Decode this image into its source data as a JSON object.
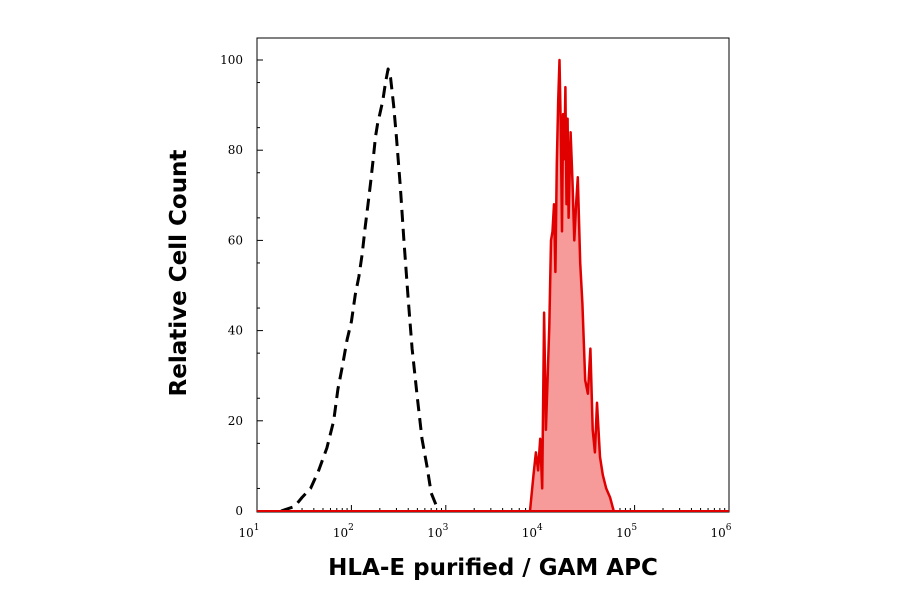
{
  "chart_data": {
    "type": "area",
    "title": "",
    "xlabel": "HLA-E purified / GAM APC",
    "ylabel": "Relative Cell Count",
    "x_scale": "log",
    "xlim": [
      10,
      1000000
    ],
    "ylim": [
      0,
      100
    ],
    "x_ticks": [
      {
        "base": "10",
        "exp": "1",
        "value": 10
      },
      {
        "base": "10",
        "exp": "2",
        "value": 100
      },
      {
        "base": "10",
        "exp": "3",
        "value": 1000
      },
      {
        "base": "10",
        "exp": "4",
        "value": 10000
      },
      {
        "base": "10",
        "exp": "5",
        "value": 100000
      },
      {
        "base": "10",
        "exp": "6",
        "value": 1000000
      }
    ],
    "y_ticks": [
      "0",
      "20",
      "40",
      "60",
      "80",
      "100"
    ],
    "grid": false,
    "legend": "none",
    "series": [
      {
        "style": "dashed",
        "color": "#000000",
        "fill": "none",
        "x": [
          18,
          25,
          30,
          37,
          45,
          55,
          65,
          72,
          80,
          90,
          100,
          110,
          120,
          130,
          140,
          150,
          160,
          170,
          180,
          190,
          200,
          215,
          230,
          245,
          260,
          280,
          300,
          330,
          360,
          400,
          440,
          500,
          560,
          630,
          700,
          800
        ],
        "y": [
          0,
          1,
          3,
          5,
          9,
          14,
          20,
          27,
          32,
          38,
          42,
          48,
          52,
          57,
          63,
          68,
          73,
          78,
          83,
          86,
          88,
          91,
          95,
          98,
          96,
          90,
          83,
          72,
          60,
          47,
          36,
          25,
          16,
          10,
          4,
          1
        ]
      },
      {
        "style": "solid",
        "color": "#e00000",
        "fill": "#f79a9a",
        "x": [
          7800,
          8500,
          9000,
          9500,
          10000,
          10500,
          11000,
          11500,
          12000,
          12500,
          13000,
          13500,
          14000,
          14500,
          15000,
          15500,
          16000,
          16500,
          17000,
          17500,
          18000,
          18500,
          19000,
          19500,
          20000,
          21000,
          22000,
          23000,
          24000,
          25000,
          26500,
          28000,
          30000,
          32000,
          34000,
          36000,
          38000,
          40000,
          43000,
          46000,
          50000,
          55000,
          60000
        ],
        "y": [
          0,
          8,
          13,
          9,
          16,
          5,
          44,
          18,
          30,
          41,
          60,
          62,
          68,
          53,
          77,
          91,
          100,
          86,
          62,
          88,
          78,
          94,
          68,
          87,
          65,
          84,
          73,
          60,
          68,
          74,
          55,
          46,
          29,
          26,
          36,
          18,
          13,
          24,
          12,
          8,
          5,
          3,
          0
        ]
      }
    ]
  }
}
